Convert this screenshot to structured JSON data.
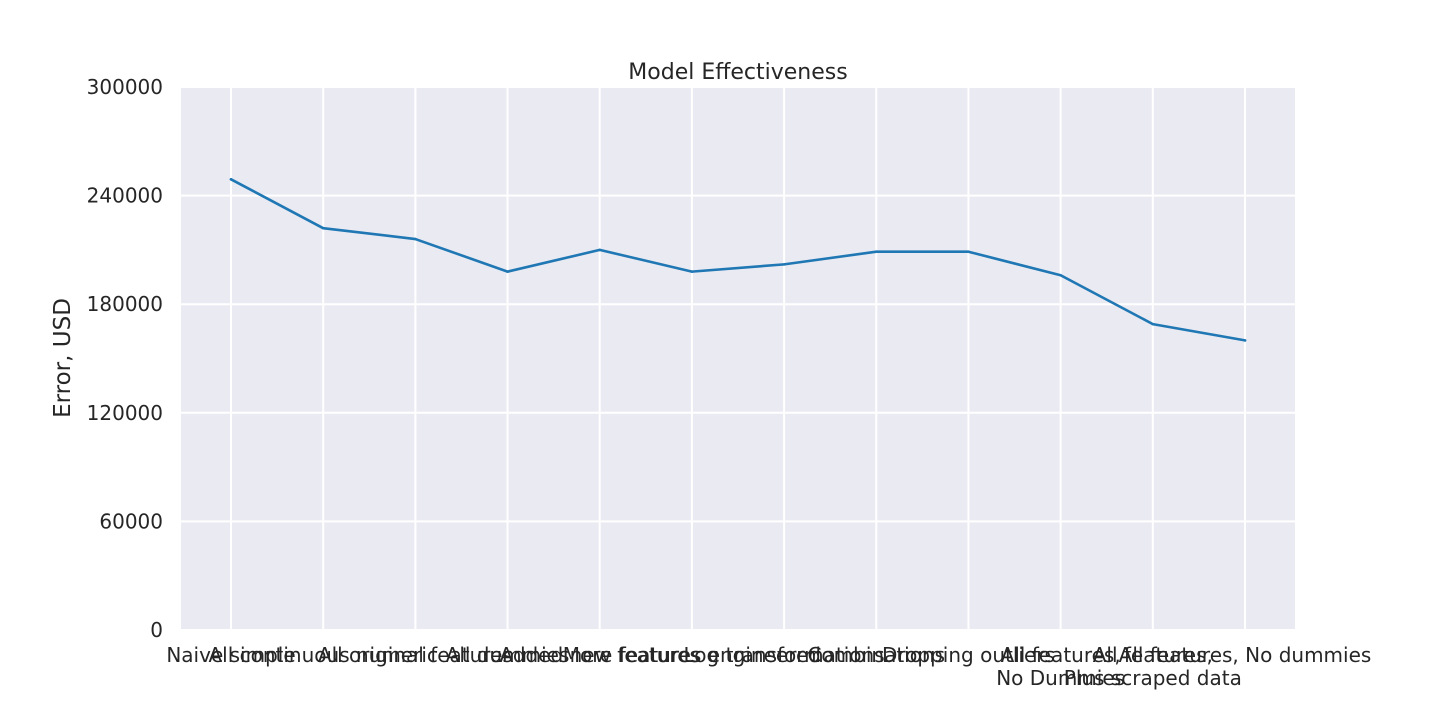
{
  "chart_data": {
    "type": "line",
    "title": "Model Effectiveness",
    "xlabel": "",
    "ylabel": "Error, USD",
    "ylim": [
      0,
      300000
    ],
    "yticks": [
      0,
      60000,
      120000,
      180000,
      240000,
      300000
    ],
    "grid": true,
    "legend": "none",
    "categories": [
      "Naive simple",
      "All continuous numeric",
      "All original features",
      "All dummies",
      "Added new features",
      "More features engineered",
      "Log transformations",
      "Combinations",
      "Dropping outliers",
      "All features,\nNo Dummies",
      "All features,\nPlus scraped data",
      "All features, No dummies"
    ],
    "series": [
      {
        "color": "#1f77b4",
        "values": [
          249000,
          222000,
          216000,
          198000,
          210000,
          198000,
          202000,
          209000,
          209000,
          196000,
          169000,
          160000
        ]
      }
    ]
  }
}
